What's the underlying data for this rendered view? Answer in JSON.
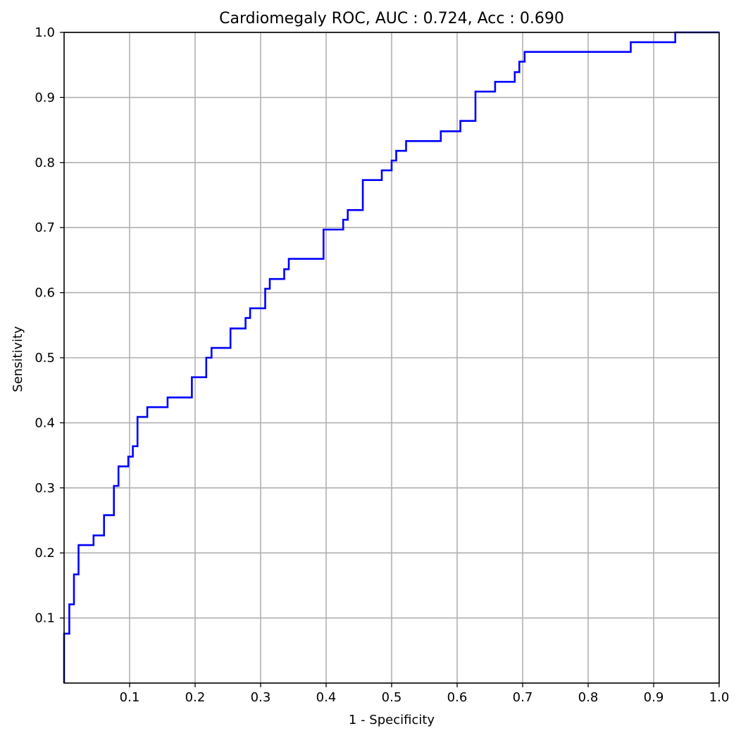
{
  "chart_data": {
    "type": "line",
    "title": "Cardiomegaly ROC, AUC : 0.724, Acc : 0.690",
    "xlabel": "1 - Specificity",
    "ylabel": "Sensitivity",
    "xlim": [
      0,
      1
    ],
    "ylim": [
      0,
      1
    ],
    "grid": true,
    "line_color": "#0000ff",
    "grid_color": "#b0b0b0",
    "x_ticks": [
      {
        "value": 0.1,
        "label": "0.1"
      },
      {
        "value": 0.2,
        "label": "0.2"
      },
      {
        "value": 0.3,
        "label": "0.3"
      },
      {
        "value": 0.4,
        "label": "0.4"
      },
      {
        "value": 0.5,
        "label": "0.5"
      },
      {
        "value": 0.6,
        "label": "0.6"
      },
      {
        "value": 0.7,
        "label": "0.7"
      },
      {
        "value": 0.8,
        "label": "0.8"
      },
      {
        "value": 0.9,
        "label": "0.9"
      },
      {
        "value": 1.0,
        "label": "1.0"
      }
    ],
    "y_ticks": [
      {
        "value": 0.1,
        "label": "0.1"
      },
      {
        "value": 0.2,
        "label": "0.2"
      },
      {
        "value": 0.3,
        "label": "0.3"
      },
      {
        "value": 0.4,
        "label": "0.4"
      },
      {
        "value": 0.5,
        "label": "0.5"
      },
      {
        "value": 0.6,
        "label": "0.6"
      },
      {
        "value": 0.7,
        "label": "0.7"
      },
      {
        "value": 0.8,
        "label": "0.8"
      },
      {
        "value": 0.9,
        "label": "0.9"
      },
      {
        "value": 1.0,
        "label": "1.0"
      }
    ],
    "series": [
      {
        "x": [
          0,
          0,
          0.008,
          0.008,
          0.015,
          0.015,
          0.022,
          0.022,
          0.045,
          0.045,
          0.061,
          0.061,
          0.076,
          0.076,
          0.083,
          0.083,
          0.098,
          0.098,
          0.105,
          0.105,
          0.112,
          0.112,
          0.127,
          0.127,
          0.158,
          0.158,
          0.195,
          0.195,
          0.217,
          0.217,
          0.225,
          0.225,
          0.254,
          0.254,
          0.277,
          0.277,
          0.284,
          0.284,
          0.307,
          0.307,
          0.314,
          0.314,
          0.336,
          0.336,
          0.343,
          0.343,
          0.396,
          0.396,
          0.426,
          0.426,
          0.433,
          0.433,
          0.456,
          0.456,
          0.485,
          0.485,
          0.5,
          0.5,
          0.507,
          0.507,
          0.522,
          0.522,
          0.575,
          0.575,
          0.605,
          0.605,
          0.628,
          0.628,
          0.658,
          0.658,
          0.688,
          0.688,
          0.695,
          0.695,
          0.703,
          0.703,
          0.865,
          0.865,
          0.933,
          0.933,
          1.0
        ],
        "y": [
          0,
          0.076,
          0.076,
          0.121,
          0.121,
          0.167,
          0.167,
          0.212,
          0.212,
          0.227,
          0.227,
          0.258,
          0.258,
          0.303,
          0.303,
          0.333,
          0.333,
          0.348,
          0.348,
          0.364,
          0.364,
          0.409,
          0.409,
          0.424,
          0.424,
          0.439,
          0.439,
          0.47,
          0.47,
          0.5,
          0.5,
          0.515,
          0.515,
          0.545,
          0.545,
          0.561,
          0.561,
          0.576,
          0.576,
          0.606,
          0.606,
          0.621,
          0.621,
          0.636,
          0.636,
          0.652,
          0.652,
          0.697,
          0.697,
          0.712,
          0.712,
          0.727,
          0.727,
          0.773,
          0.773,
          0.788,
          0.788,
          0.803,
          0.803,
          0.818,
          0.818,
          0.833,
          0.833,
          0.848,
          0.848,
          0.864,
          0.864,
          0.909,
          0.909,
          0.924,
          0.924,
          0.939,
          0.939,
          0.955,
          0.955,
          0.97,
          0.97,
          0.985,
          0.985,
          1.0,
          1.0
        ]
      }
    ]
  }
}
